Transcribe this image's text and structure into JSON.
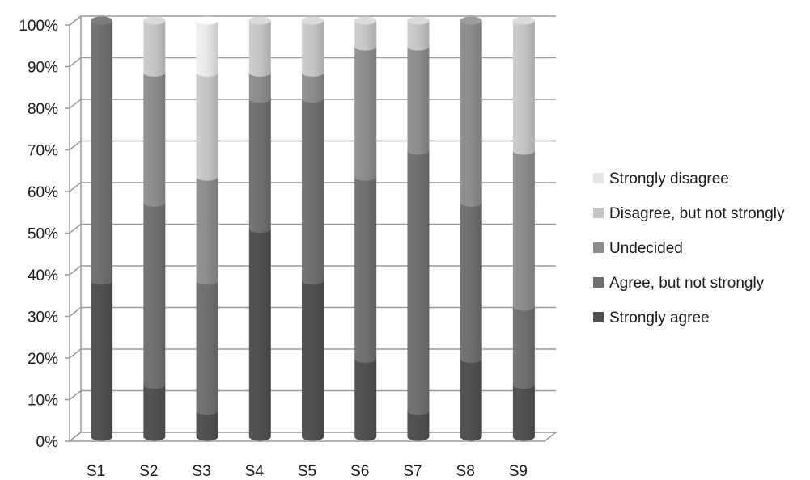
{
  "chart_data": {
    "type": "bar",
    "stacked": true,
    "percent_stacked": true,
    "categories": [
      "S1",
      "S2",
      "S3",
      "S4",
      "S5",
      "S6",
      "S7",
      "S8",
      "S9"
    ],
    "series": [
      {
        "name": "Strongly agree",
        "color": "#505050",
        "values": [
          37.5,
          12.5,
          6.25,
          50,
          37.5,
          18.75,
          6.25,
          18.75,
          12.5
        ]
      },
      {
        "name": "Agree, but not strongly",
        "color": "#6f6f6f",
        "values": [
          62.5,
          43.75,
          31.25,
          31.25,
          43.75,
          43.75,
          62.5,
          37.5,
          18.75
        ]
      },
      {
        "name": "Undecided",
        "color": "#8c8c8c",
        "values": [
          0,
          31.25,
          25,
          6.25,
          6.25,
          31.25,
          25,
          43.75,
          37.5
        ]
      },
      {
        "name": "Disagree, but not strongly",
        "color": "#c4c4c4",
        "values": [
          0,
          12.5,
          25,
          12.5,
          12.5,
          6.25,
          6.25,
          0,
          31.25
        ]
      },
      {
        "name": "Strongly disagree",
        "color": "#e6e6e6",
        "values": [
          0,
          0,
          12.5,
          0,
          0,
          0,
          0,
          0,
          0
        ]
      }
    ],
    "y_ticks": [
      "0%",
      "10%",
      "20%",
      "30%",
      "40%",
      "50%",
      "60%",
      "70%",
      "80%",
      "90%",
      "100%"
    ],
    "ylim": [
      0,
      100
    ],
    "grid": true,
    "legend_position": "right",
    "legend_order": [
      "Strongly disagree",
      "Disagree, but not strongly",
      "Undecided",
      "Agree, but not strongly",
      "Strongly agree"
    ],
    "three_d": true
  }
}
